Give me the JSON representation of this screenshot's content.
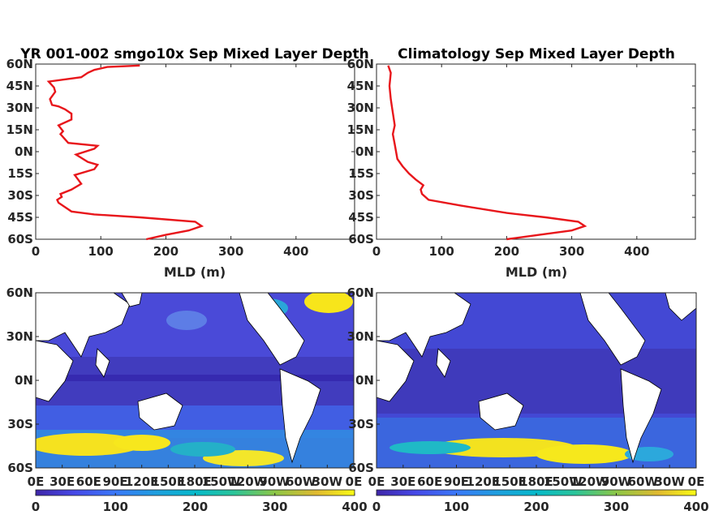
{
  "chart_data": [
    {
      "type": "line",
      "title": "YR 001-002 smgo10x Sep Mixed Layer Depth",
      "xlabel": "MLD (m)",
      "ylabel": "",
      "xlim": [
        0,
        490
      ],
      "ylim": [
        -60,
        60
      ],
      "xticks": [
        "0",
        "100",
        "200",
        "300",
        "400"
      ],
      "yticks": [
        "60N",
        "45N",
        "30N",
        "15N",
        "0N",
        "15S",
        "30S",
        "45S",
        "60S"
      ],
      "line_color": "#e8161b",
      "series": [
        {
          "x": [
            170,
            200,
            235,
            255,
            245,
            160,
            90,
            55,
            45,
            35,
            33,
            40,
            38,
            55,
            70,
            65,
            60,
            90,
            95,
            80,
            62,
            90,
            95,
            50,
            38,
            42,
            35,
            55,
            55,
            45,
            35,
            25,
            22,
            30,
            28,
            20,
            70,
            80,
            90,
            110,
            160
          ],
          "y": [
            -60,
            -57,
            -54,
            -51,
            -48,
            -45,
            -43,
            -41,
            -38,
            -35,
            -33,
            -31,
            -29,
            -26,
            -22,
            -19,
            -16,
            -12,
            -9,
            -7,
            -2,
            2,
            4,
            6,
            12,
            14,
            18,
            22,
            26,
            29,
            31,
            32,
            36,
            41,
            44,
            48,
            51,
            54,
            56,
            58,
            59
          ]
        }
      ]
    },
    {
      "type": "line",
      "title": "Climatology Sep Mixed Layer Depth",
      "xlabel": "MLD (m)",
      "ylabel": "",
      "xlim": [
        0,
        490
      ],
      "ylim": [
        -60,
        60
      ],
      "xticks": [
        "0",
        "100",
        "200",
        "300",
        "400"
      ],
      "yticks": [
        "60N",
        "45N",
        "30N",
        "15N",
        "0N",
        "15S",
        "30S",
        "45S",
        "60S"
      ],
      "line_color": "#e8161b",
      "series": [
        {
          "x": [
            200,
            250,
            300,
            320,
            310,
            260,
            200,
            130,
            80,
            70,
            68,
            72,
            60,
            50,
            40,
            32,
            30,
            28,
            25,
            28,
            24,
            22,
            20,
            22,
            18
          ],
          "y": [
            -60,
            -57,
            -54,
            -51,
            -48,
            -45,
            -42,
            -37,
            -33,
            -29,
            -26,
            -23,
            -19,
            -15,
            -10,
            -5,
            0,
            5,
            12,
            18,
            30,
            36,
            45,
            54,
            59
          ]
        }
      ]
    },
    {
      "type": "heatmap",
      "title": "",
      "xticks": [
        "0E",
        "30E",
        "60E",
        "90E",
        "120E",
        "150E",
        "180E",
        "150W",
        "120W",
        "90W",
        "60W",
        "30W",
        "0E"
      ],
      "yticks": [
        "60N",
        "30N",
        "0N",
        "30S",
        "60S"
      ],
      "xlim": [
        0,
        360
      ],
      "ylim": [
        -60,
        60
      ],
      "colorbar": {
        "ticks": [
          "0",
          "100",
          "200",
          "300",
          "400"
        ],
        "range": [
          0,
          400
        ]
      }
    },
    {
      "type": "heatmap",
      "title": "",
      "xticks": [
        "0E",
        "30E",
        "60E",
        "90E",
        "120E",
        "150E",
        "180E",
        "150W",
        "120W",
        "90W",
        "60W",
        "30W",
        "0E"
      ],
      "yticks": [
        "60N",
        "30N",
        "0N",
        "30S",
        "60S"
      ],
      "xlim": [
        0,
        360
      ],
      "ylim": [
        -60,
        60
      ],
      "colorbar": {
        "ticks": [
          "0",
          "100",
          "200",
          "300",
          "400"
        ],
        "range": [
          0,
          400
        ]
      }
    }
  ]
}
